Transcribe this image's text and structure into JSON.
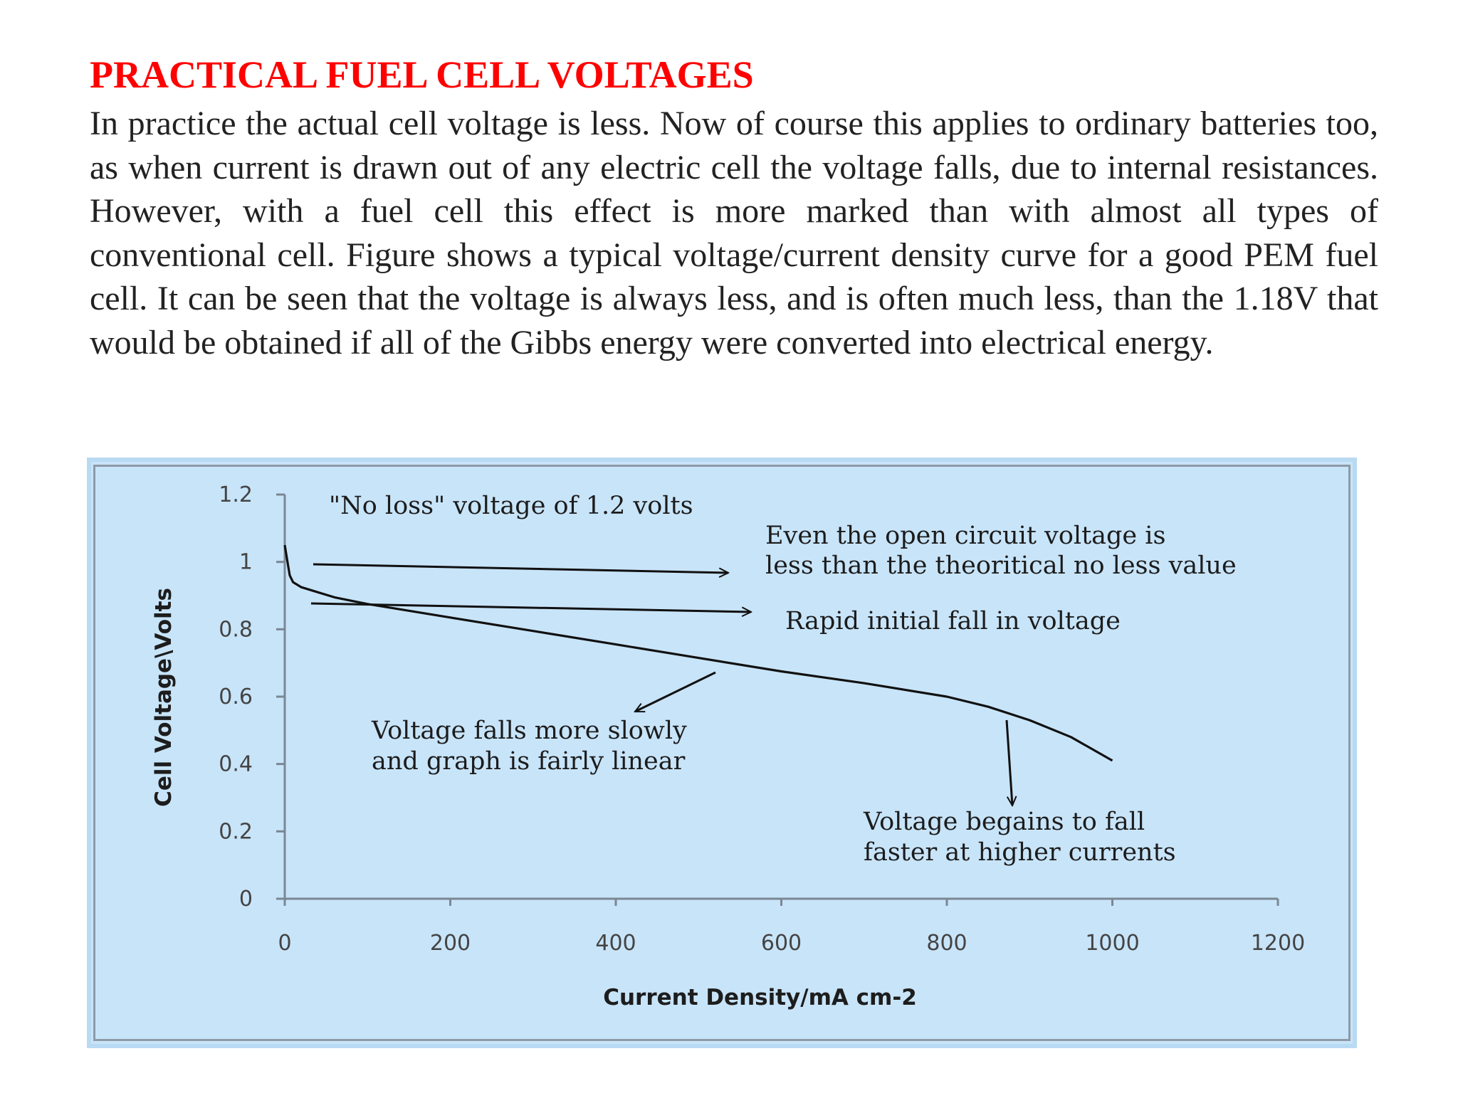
{
  "page": {
    "title": "PRACTICAL FUEL CELL VOLTAGES",
    "paragraph": "In practice the actual cell voltage is less. Now of course this applies to ordinary batteries too, as when current is drawn out of any electric cell the voltage falls, due to internal resistances. However, with a fuel cell this effect is more marked than with almost all types of conventional cell. Figure shows a typical voltage/current density curve for a good PEM fuel cell. It can be seen that the voltage is always less, and is often much less, than the 1.18V that would be obtained if all of the Gibbs energy were converted into electrical energy."
  },
  "chart_data": {
    "type": "line",
    "title": "",
    "xlabel": "Current Density/mA cm-2",
    "ylabel": "Cell Voltage\\Volts",
    "xlim": [
      0,
      1200
    ],
    "ylim": [
      0,
      1.2
    ],
    "xticks": [
      0,
      200,
      400,
      600,
      800,
      1000,
      1200
    ],
    "yticks": [
      0,
      0.2,
      0.4,
      0.6,
      0.8,
      1,
      1.2
    ],
    "ytick_labels": [
      "0",
      "0.2",
      "0.4",
      "0.6",
      "0.8",
      "1",
      "1.2"
    ],
    "grid": false,
    "legend": "none",
    "line_color": "#111111",
    "background_color": "#c8e4f9",
    "series": [
      {
        "x": [
          0,
          2,
          4,
          6,
          10,
          20,
          40,
          60,
          100,
          200,
          300,
          400,
          500,
          600,
          700,
          800,
          850,
          900,
          950,
          1000
        ],
        "y": [
          1.05,
          1.02,
          0.99,
          0.96,
          0.94,
          0.925,
          0.91,
          0.895,
          0.875,
          0.835,
          0.795,
          0.755,
          0.715,
          0.675,
          0.64,
          0.6,
          0.57,
          0.53,
          0.48,
          0.41
        ]
      }
    ],
    "annotations": [
      {
        "id": "no-loss",
        "lines": [
          "\"No loss\" voltage of 1.2 volts"
        ]
      },
      {
        "id": "ocv",
        "lines": [
          "Even the open circuit voltage is",
          "less than the theoritical no less value"
        ]
      },
      {
        "id": "rapid",
        "lines": [
          "Rapid initial fall in voltage"
        ]
      },
      {
        "id": "linear",
        "lines": [
          "Voltage falls more slowly",
          "and graph is fairly linear"
        ]
      },
      {
        "id": "faster",
        "lines": [
          "Voltage begains to fall",
          "faster at higher currents"
        ]
      }
    ]
  }
}
